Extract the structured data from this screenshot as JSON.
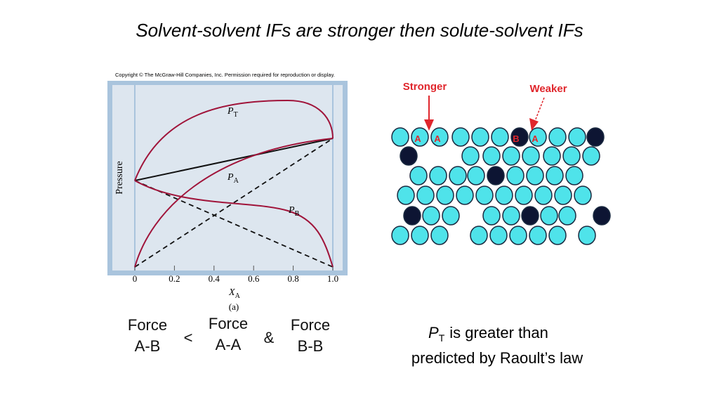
{
  "title": "Solvent-solvent IFs are stronger then solute-solvent IFs",
  "figure": {
    "copyright": "Copyright © The McGraw-Hill Companies, Inc. Permission required for reproduction or display.",
    "y_label": "Pressure",
    "x_label": {
      "main": "X",
      "sub": "A"
    },
    "x_ticks": [
      "0",
      "0.2",
      "0.4",
      "0.6",
      "0.8",
      "1.0"
    ],
    "curves": [
      {
        "main": "P",
        "sub": "T"
      },
      {
        "main": "P",
        "sub": "A"
      },
      {
        "main": "P",
        "sub": "B"
      }
    ],
    "caption": "(a)"
  },
  "molecules": {
    "arrows": [
      "Stronger",
      "Weaker"
    ],
    "tags": [
      "A",
      "A",
      "B",
      "A"
    ]
  },
  "comparison": {
    "items": [
      [
        "Force",
        "A-B"
      ],
      [
        "Force",
        "A-A"
      ],
      [
        "Force",
        "B-B"
      ]
    ],
    "operators": [
      "<",
      "&"
    ]
  },
  "note": {
    "main": "P",
    "sub": "T",
    "line1": "is greater than",
    "line2": "predicted by Raoult’s law"
  }
}
